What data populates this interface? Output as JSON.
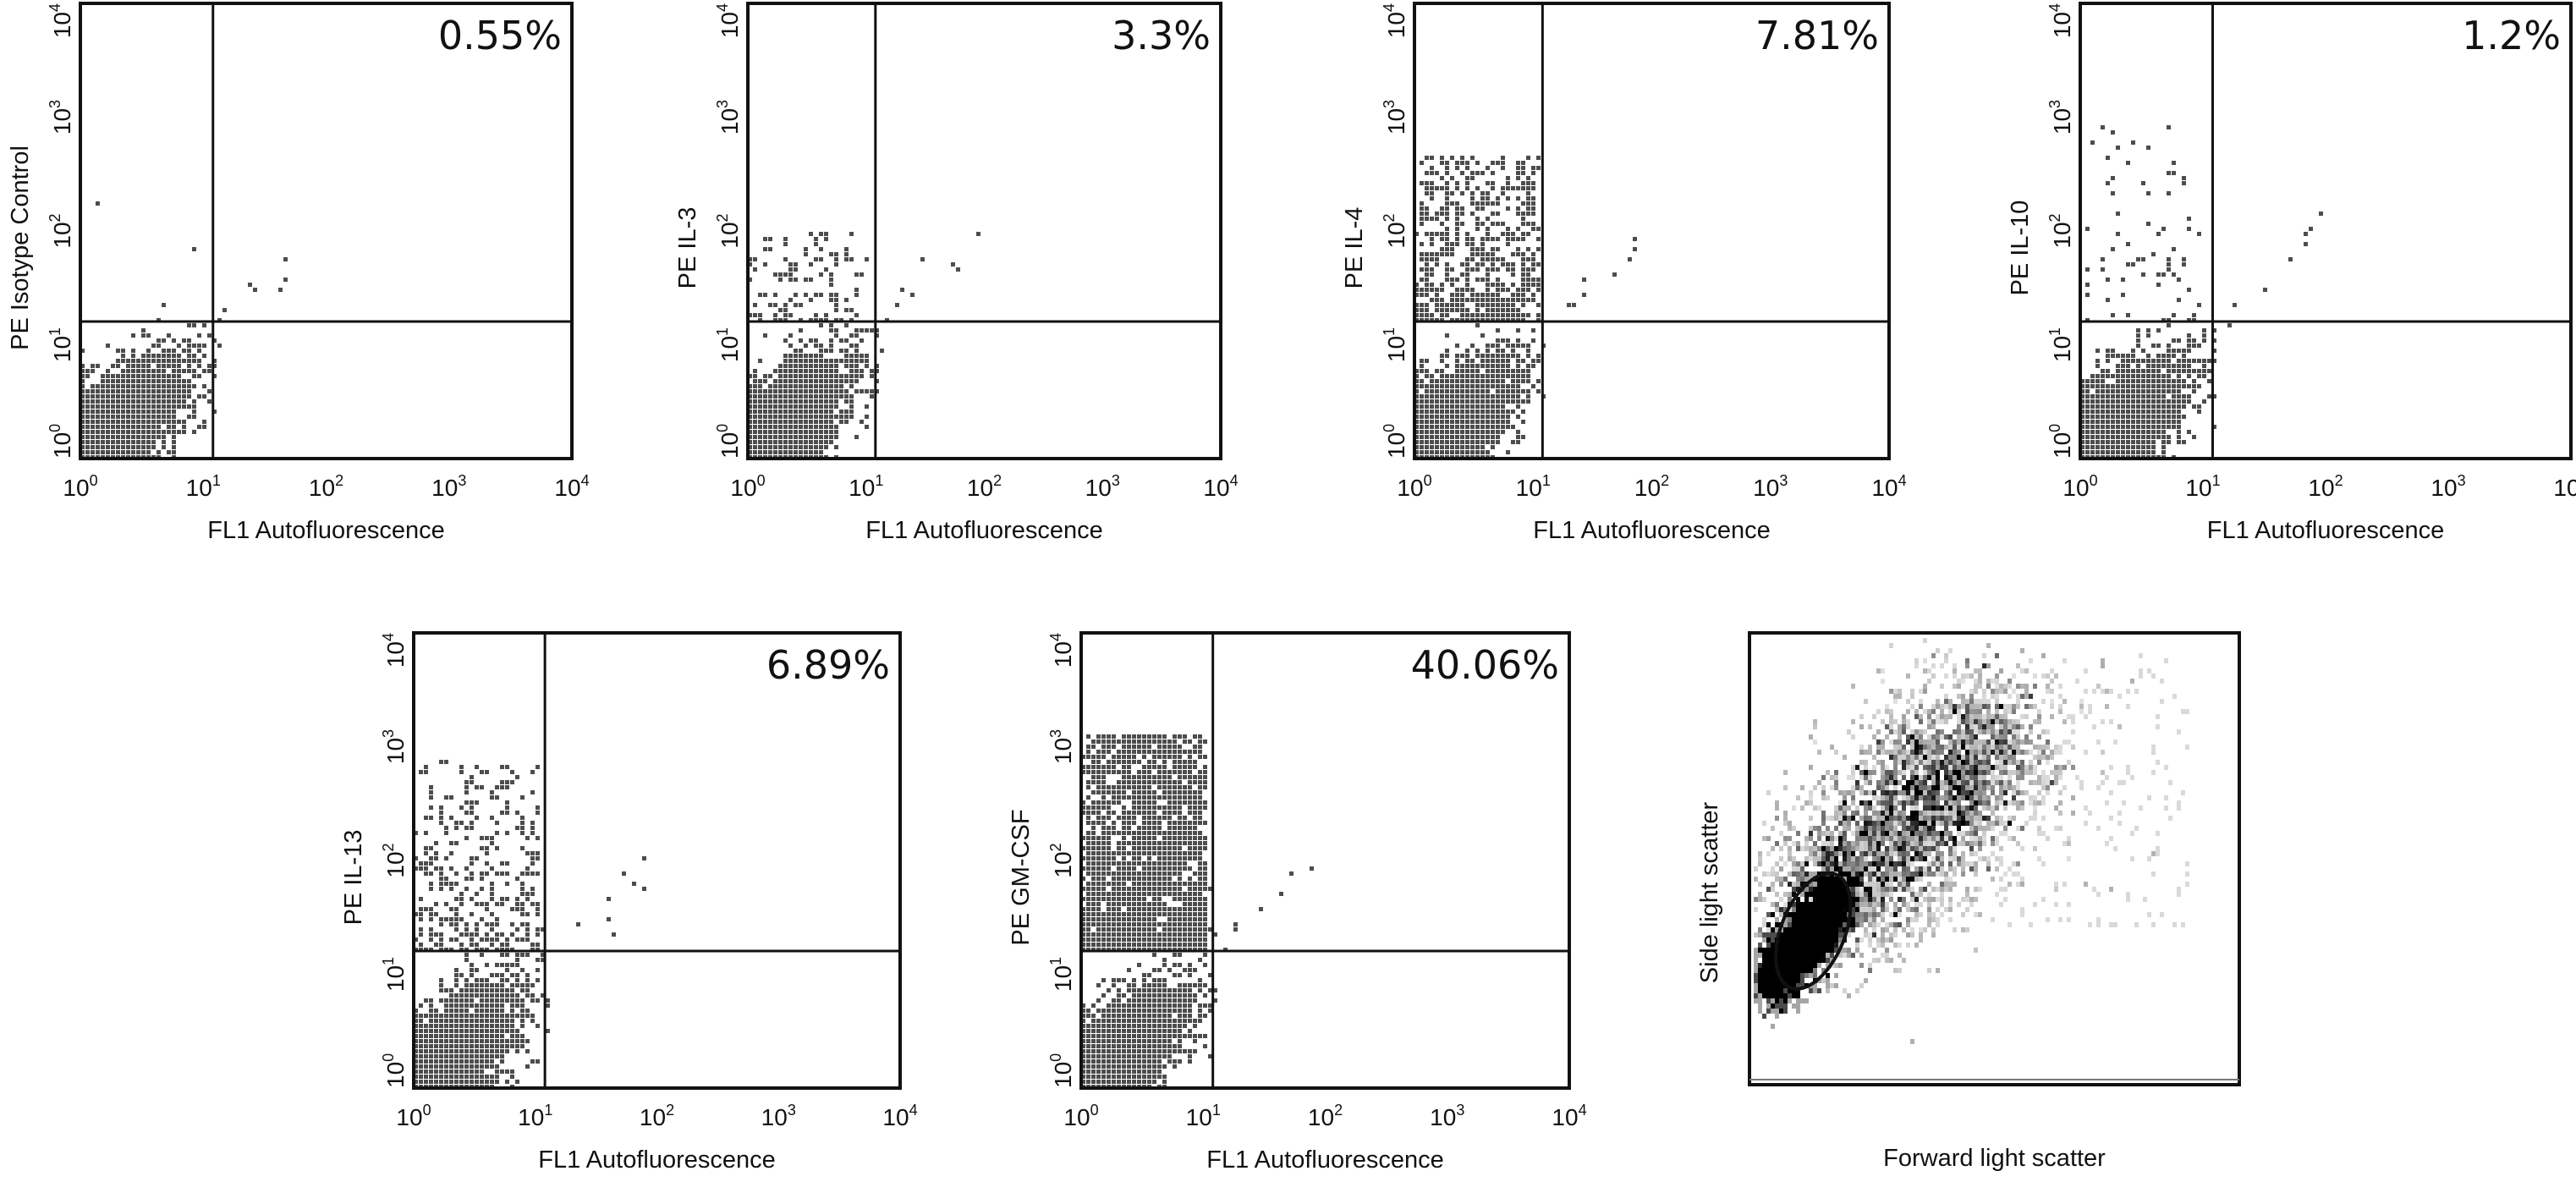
{
  "chart_data": [
    {
      "type": "scatter",
      "ylabel": "PE Isotype Control",
      "xlabel": "FL1 Autofluorescence",
      "quadrant_percent_label": "0.55%",
      "x_scale": "log",
      "y_scale": "log",
      "xlim": [
        1,
        10000
      ],
      "ylim": [
        1,
        10000
      ],
      "gate": {
        "x": 12,
        "y": 16
      },
      "dot_color": "#4d4d4d"
    },
    {
      "type": "scatter",
      "ylabel": "PE IL-3",
      "xlabel": "FL1 Autofluorescence",
      "quadrant_percent_label": "3.3%",
      "x_scale": "log",
      "y_scale": "log",
      "xlim": [
        1,
        10000
      ],
      "ylim": [
        1,
        10000
      ],
      "gate": {
        "x": 12,
        "y": 16
      },
      "dot_color": "#4d4d4d"
    },
    {
      "type": "scatter",
      "ylabel": "PE IL-4",
      "xlabel": "FL1 Autofluorescence",
      "quadrant_percent_label": "7.81%",
      "x_scale": "log",
      "y_scale": "log",
      "xlim": [
        1,
        10000
      ],
      "ylim": [
        1,
        10000
      ],
      "gate": {
        "x": 12,
        "y": 16
      },
      "dot_color": "#4d4d4d"
    },
    {
      "type": "scatter",
      "ylabel": "PE IL-10",
      "xlabel": "FL1 Autofluorescence",
      "quadrant_percent_label": "1.2%",
      "x_scale": "log",
      "y_scale": "log",
      "xlim": [
        1,
        10000
      ],
      "ylim": [
        1,
        10000
      ],
      "gate": {
        "x": 12,
        "y": 16
      },
      "dot_color": "#4d4d4d"
    },
    {
      "type": "scatter",
      "ylabel": "PE IL-13",
      "xlabel": "FL1 Autofluorescence",
      "quadrant_percent_label": "6.89%",
      "x_scale": "log",
      "y_scale": "log",
      "xlim": [
        1,
        10000
      ],
      "ylim": [
        1,
        10000
      ],
      "gate": {
        "x": 12,
        "y": 16
      },
      "dot_color": "#4d4d4d"
    },
    {
      "type": "scatter",
      "ylabel": "PE GM-CSF",
      "xlabel": "FL1 Autofluorescence",
      "quadrant_percent_label": "40.06%",
      "x_scale": "log",
      "y_scale": "log",
      "xlim": [
        1,
        10000
      ],
      "ylim": [
        1,
        10000
      ],
      "gate": {
        "x": 12,
        "y": 16
      },
      "dot_color": "#4d4d4d"
    },
    {
      "type": "scatter",
      "ylabel": "Side light scatter",
      "xlabel": "Forward light scatter",
      "x_scale": "linear",
      "y_scale": "linear",
      "gate_shape": "ellipse",
      "dot_color": "#000000"
    }
  ],
  "tick_base": "10",
  "tick_exponents": [
    "0",
    "1",
    "2",
    "3",
    "4"
  ]
}
